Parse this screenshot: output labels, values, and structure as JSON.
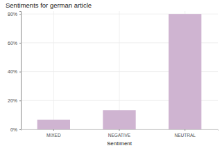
{
  "chart_data": {
    "type": "bar",
    "title": "Sentiments for german article",
    "x_label": "Sentiment",
    "categories": [
      "MIXED",
      "NEGATIVE",
      "NEUTRAL"
    ],
    "values": [
      6.7,
      13.3,
      80
    ],
    "color": "#cfb4d1",
    "ylim": [
      0,
      82
    ],
    "yticks": [
      {
        "value": 0,
        "label": "0%"
      },
      {
        "value": 20,
        "label": "20%"
      },
      {
        "value": 40,
        "label": "40%"
      },
      {
        "value": 60,
        "label": "60%"
      },
      {
        "value": 80,
        "label": "80%"
      }
    ],
    "grid": true
  }
}
